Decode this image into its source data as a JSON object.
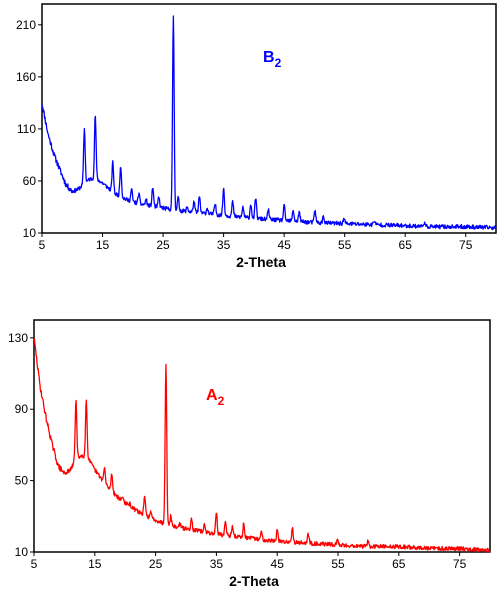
{
  "chart_data": [
    {
      "type": "line",
      "panel_label": "B",
      "panel_label_sub": "2",
      "color": "#0000ff",
      "xlabel": "2-Theta",
      "ylabel": "",
      "xlim": [
        5,
        80
      ],
      "ylim": [
        10,
        230
      ],
      "xticks": [
        5,
        15,
        25,
        35,
        45,
        55,
        65,
        75
      ],
      "yticks": [
        10,
        60,
        110,
        160,
        210
      ],
      "baseline": [
        [
          5,
          135
        ],
        [
          6,
          105
        ],
        [
          7,
          85
        ],
        [
          8,
          70
        ],
        [
          9,
          56
        ],
        [
          10,
          50
        ],
        [
          11,
          52
        ],
        [
          12,
          58
        ],
        [
          13,
          62
        ],
        [
          14,
          62
        ],
        [
          15,
          58
        ],
        [
          17,
          48
        ],
        [
          19,
          42
        ],
        [
          21,
          38
        ],
        [
          23,
          36
        ],
        [
          25,
          34
        ],
        [
          27,
          32
        ],
        [
          30,
          30
        ],
        [
          35,
          27
        ],
        [
          40,
          24
        ],
        [
          45,
          22
        ],
        [
          50,
          20
        ],
        [
          55,
          19
        ],
        [
          60,
          18
        ],
        [
          65,
          17
        ],
        [
          70,
          16
        ],
        [
          75,
          16
        ],
        [
          80,
          15
        ]
      ],
      "peaks": [
        {
          "x": 12.0,
          "y": 110
        },
        {
          "x": 13.8,
          "y": 123
        },
        {
          "x": 16.7,
          "y": 78
        },
        {
          "x": 18.0,
          "y": 75
        },
        {
          "x": 19.8,
          "y": 52
        },
        {
          "x": 21.0,
          "y": 48
        },
        {
          "x": 22.2,
          "y": 42
        },
        {
          "x": 23.3,
          "y": 54
        },
        {
          "x": 24.3,
          "y": 44
        },
        {
          "x": 26.7,
          "y": 219
        },
        {
          "x": 27.5,
          "y": 44
        },
        {
          "x": 29.0,
          "y": 35
        },
        {
          "x": 30.1,
          "y": 40
        },
        {
          "x": 31.0,
          "y": 45
        },
        {
          "x": 32.3,
          "y": 34
        },
        {
          "x": 33.6,
          "y": 38
        },
        {
          "x": 35.0,
          "y": 53
        },
        {
          "x": 36.5,
          "y": 40
        },
        {
          "x": 38.2,
          "y": 35
        },
        {
          "x": 39.5,
          "y": 38
        },
        {
          "x": 40.3,
          "y": 44
        },
        {
          "x": 42.4,
          "y": 32
        },
        {
          "x": 45.0,
          "y": 36
        },
        {
          "x": 46.5,
          "y": 32
        },
        {
          "x": 47.5,
          "y": 30
        },
        {
          "x": 50.1,
          "y": 32
        },
        {
          "x": 51.5,
          "y": 26
        },
        {
          "x": 54.9,
          "y": 24
        },
        {
          "x": 59.9,
          "y": 22
        },
        {
          "x": 68.1,
          "y": 20
        }
      ]
    },
    {
      "type": "line",
      "panel_label": "A",
      "panel_label_sub": "2",
      "color": "#ff0000",
      "xlabel": "2-Theta",
      "ylabel": "",
      "xlim": [
        5,
        80
      ],
      "ylim": [
        10,
        140
      ],
      "xticks": [
        5,
        15,
        25,
        35,
        45,
        55,
        65,
        75
      ],
      "yticks": [
        10,
        50,
        90,
        130
      ],
      "baseline": [
        [
          5,
          130
        ],
        [
          6,
          103
        ],
        [
          7,
          85
        ],
        [
          8,
          70
        ],
        [
          9,
          58
        ],
        [
          10,
          54
        ],
        [
          11,
          56
        ],
        [
          12,
          63
        ],
        [
          13,
          64
        ],
        [
          14,
          62
        ],
        [
          15,
          56
        ],
        [
          17,
          47
        ],
        [
          19,
          40
        ],
        [
          21,
          35
        ],
        [
          23,
          31
        ],
        [
          25,
          28
        ],
        [
          27,
          25
        ],
        [
          30,
          23
        ],
        [
          35,
          20
        ],
        [
          40,
          18
        ],
        [
          45,
          16
        ],
        [
          50,
          15
        ],
        [
          55,
          14
        ],
        [
          60,
          13
        ],
        [
          65,
          13
        ],
        [
          70,
          12
        ],
        [
          75,
          12
        ],
        [
          80,
          11
        ]
      ],
      "peaks": [
        {
          "x": 11.9,
          "y": 95
        },
        {
          "x": 13.6,
          "y": 95
        },
        {
          "x": 16.6,
          "y": 57
        },
        {
          "x": 17.8,
          "y": 54
        },
        {
          "x": 19.6,
          "y": 41
        },
        {
          "x": 20.8,
          "y": 37
        },
        {
          "x": 22.0,
          "y": 33
        },
        {
          "x": 23.2,
          "y": 41
        },
        {
          "x": 24.2,
          "y": 32
        },
        {
          "x": 26.7,
          "y": 116
        },
        {
          "x": 27.5,
          "y": 30
        },
        {
          "x": 29.0,
          "y": 26
        },
        {
          "x": 30.9,
          "y": 29
        },
        {
          "x": 33.0,
          "y": 25
        },
        {
          "x": 35.0,
          "y": 32
        },
        {
          "x": 36.5,
          "y": 27
        },
        {
          "x": 37.6,
          "y": 24
        },
        {
          "x": 39.5,
          "y": 26
        },
        {
          "x": 42.4,
          "y": 21
        },
        {
          "x": 45.0,
          "y": 22
        },
        {
          "x": 47.5,
          "y": 24
        },
        {
          "x": 50.1,
          "y": 20
        },
        {
          "x": 54.9,
          "y": 17
        },
        {
          "x": 59.9,
          "y": 16
        }
      ]
    }
  ]
}
